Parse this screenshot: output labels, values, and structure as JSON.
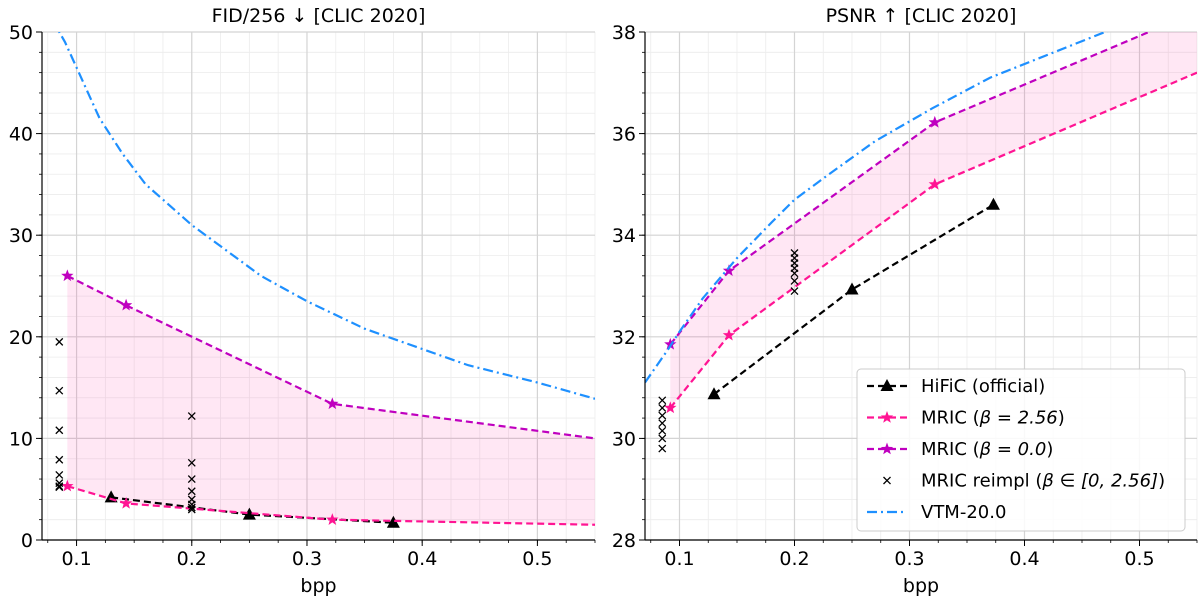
{
  "chart_data": [
    {
      "type": "line",
      "title": "FID/256 ↓  [CLIC 2020]",
      "xlabel": "bpp",
      "ylabel": "",
      "xlim": [
        0.07,
        0.55
      ],
      "ylim": [
        0,
        50
      ],
      "x_ticks": [
        0.1,
        0.2,
        0.3,
        0.4,
        0.5
      ],
      "x_tick_labels": [
        "0.1",
        "0.2",
        "0.3",
        "0.4",
        "0.5"
      ],
      "y_ticks": [
        0,
        10,
        20,
        30,
        40,
        50
      ],
      "y_tick_labels": [
        "0",
        "10",
        "20",
        "30",
        "40",
        "50"
      ],
      "grid": true,
      "series": [
        {
          "name": "HiFiC (official)",
          "style": "dashed",
          "marker": "triangle",
          "color": "#000000",
          "x": [
            0.13,
            0.25,
            0.375
          ],
          "y": [
            4.2,
            2.5,
            1.7
          ]
        },
        {
          "name": "MRIC (β = 2.56)",
          "style": "dashed",
          "marker": "star",
          "color": "#ff1493",
          "x": [
            0.092,
            0.143,
            0.322,
            0.55
          ],
          "y": [
            5.3,
            3.6,
            2.0,
            1.5
          ],
          "marker_count": 3
        },
        {
          "name": "MRIC (β = 0.0)",
          "style": "dashed",
          "marker": "star",
          "color": "#bf00bf",
          "x": [
            0.092,
            0.143,
            0.322,
            0.55
          ],
          "y": [
            26.0,
            23.1,
            13.4,
            10.0
          ],
          "marker_count": 3
        },
        {
          "name": "MRIC reimpl (β ∈ [0, 2.56])",
          "style": "none",
          "marker": "x",
          "color": "#000000",
          "x": [
            0.085,
            0.085,
            0.085,
            0.085,
            0.085,
            0.085,
            0.085,
            0.085,
            0.2,
            0.2,
            0.2,
            0.2,
            0.2,
            0.2,
            0.2,
            0.2
          ],
          "y": [
            19.5,
            14.7,
            10.8,
            7.9,
            6.4,
            5.6,
            5.3,
            5.2,
            12.2,
            7.6,
            6.0,
            4.8,
            4.0,
            3.5,
            3.2,
            3.0
          ]
        },
        {
          "name": "VTM-20.0",
          "style": "dashdot",
          "marker": "none",
          "color": "#1e90ff",
          "x": [
            0.07,
            0.09,
            0.1,
            0.12,
            0.14,
            0.16,
            0.18,
            0.2,
            0.23,
            0.26,
            0.3,
            0.35,
            0.4,
            0.44,
            0.5,
            0.55
          ],
          "y": [
            53,
            49,
            46.5,
            41.5,
            38,
            35,
            33,
            31,
            28.5,
            26,
            23.5,
            20.8,
            18.8,
            17.2,
            15.5,
            13.9
          ]
        }
      ],
      "band": {
        "color": "#ff1493",
        "opacity": 0.1,
        "between": [
          "MRIC (β = 2.56)",
          "MRIC (β = 0.0)"
        ]
      }
    },
    {
      "type": "line",
      "title": "PSNR ↑  [CLIC 2020]",
      "xlabel": "bpp",
      "ylabel": "",
      "xlim": [
        0.07,
        0.55
      ],
      "ylim": [
        28,
        38
      ],
      "x_ticks": [
        0.1,
        0.2,
        0.3,
        0.4,
        0.5
      ],
      "x_tick_labels": [
        "0.1",
        "0.2",
        "0.3",
        "0.4",
        "0.5"
      ],
      "y_ticks": [
        28,
        30,
        32,
        34,
        36,
        38
      ],
      "y_tick_labels": [
        "28",
        "30",
        "32",
        "34",
        "36",
        "38"
      ],
      "grid": true,
      "legend_position": "lower-right",
      "series": [
        {
          "name": "HiFiC (official)",
          "style": "dashed",
          "marker": "triangle",
          "color": "#000000",
          "x": [
            0.13,
            0.25,
            0.373
          ],
          "y": [
            30.87,
            32.93,
            34.6
          ]
        },
        {
          "name": "MRIC (β = 2.56)",
          "style": "dashed",
          "marker": "star",
          "color": "#ff1493",
          "x": [
            0.092,
            0.143,
            0.322,
            0.55
          ],
          "y": [
            30.6,
            32.03,
            35.0,
            37.2
          ],
          "marker_count": 3
        },
        {
          "name": "MRIC (β = 0.0)",
          "style": "dashed",
          "marker": "star",
          "color": "#bf00bf",
          "x": [
            0.092,
            0.143,
            0.322,
            0.55
          ],
          "y": [
            31.85,
            33.3,
            36.22,
            38.4
          ],
          "marker_count": 3
        },
        {
          "name": "MRIC reimpl (β ∈ [0, 2.56])",
          "style": "none",
          "marker": "x",
          "color": "#000000",
          "x": [
            0.085,
            0.085,
            0.085,
            0.085,
            0.085,
            0.085,
            0.085,
            0.2,
            0.2,
            0.2,
            0.2,
            0.2,
            0.2,
            0.2
          ],
          "y": [
            30.75,
            30.6,
            30.45,
            30.3,
            30.15,
            30.0,
            29.8,
            33.65,
            33.55,
            33.45,
            33.35,
            33.25,
            33.1,
            32.9
          ]
        },
        {
          "name": "VTM-20.0",
          "style": "dashdot",
          "marker": "none",
          "color": "#1e90ff",
          "x": [
            0.07,
            0.09,
            0.1,
            0.12,
            0.15,
            0.18,
            0.2,
            0.23,
            0.27,
            0.32,
            0.37,
            0.42,
            0.47,
            0.52
          ],
          "y": [
            31.1,
            31.75,
            32.1,
            32.75,
            33.55,
            34.25,
            34.7,
            35.2,
            35.85,
            36.5,
            37.1,
            37.55,
            38.0,
            38.4
          ]
        }
      ],
      "band": {
        "color": "#ff1493",
        "opacity": 0.1,
        "between": [
          "MRIC (β = 2.56)",
          "MRIC (β = 0.0)"
        ]
      }
    }
  ],
  "legend": [
    {
      "prefix": "HiFiC (official)",
      "math": "",
      "suffix": ""
    },
    {
      "prefix": "MRIC (",
      "math": "β = 2.56",
      "suffix": ")"
    },
    {
      "prefix": "MRIC (",
      "math": "β = 0.0",
      "suffix": ")"
    },
    {
      "prefix": "MRIC reimpl (",
      "math": "β ∈ [0, 2.56]",
      "suffix": ")"
    },
    {
      "prefix": "VTM-20.0",
      "math": "",
      "suffix": ""
    }
  ]
}
